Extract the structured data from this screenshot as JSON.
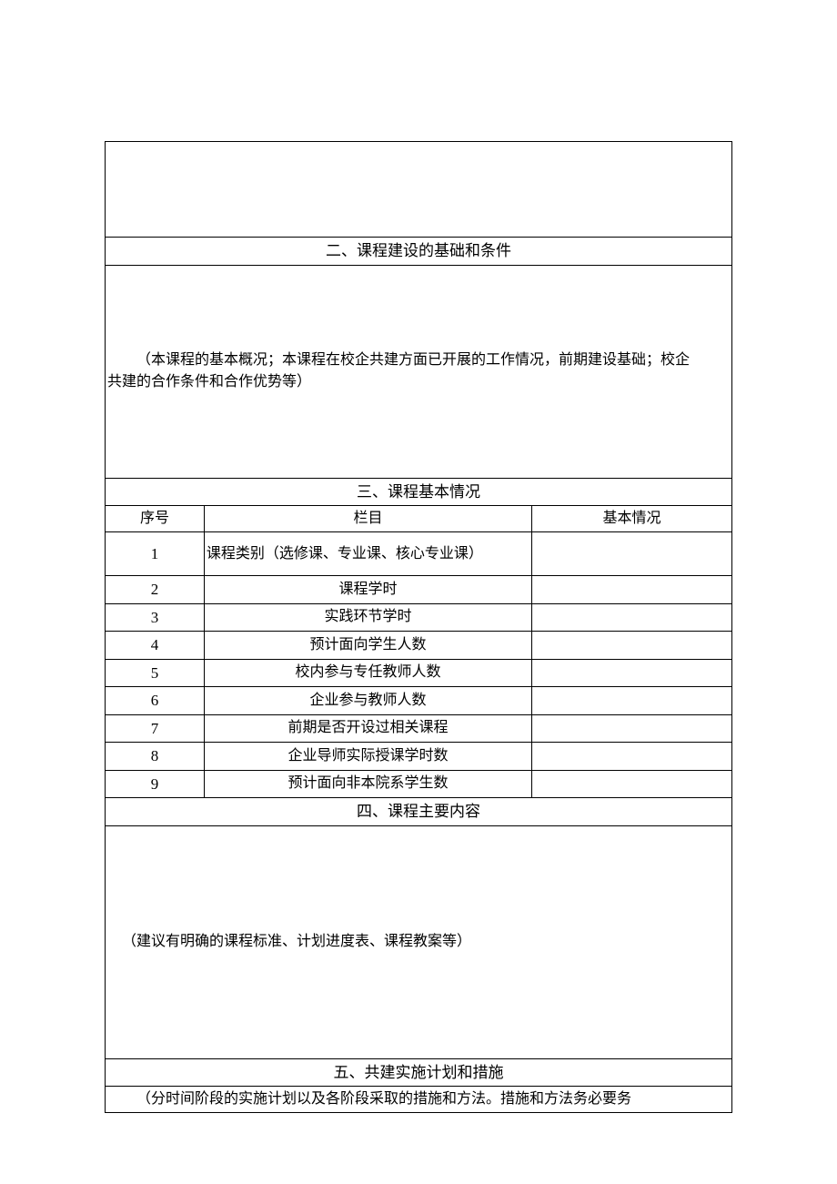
{
  "section2": {
    "title": "二、课程建设的基础和条件",
    "body_line1": "（本课程的基本概况；本课程在校企共建方面已开展的工作情况，前期建设基础；校企",
    "body_line2": "共建的合作条件和合作优势等）"
  },
  "section3": {
    "title": "三、课程基本情况",
    "header_seq": "序号",
    "header_item": "栏目",
    "header_info": "基本情况",
    "rows": [
      {
        "seq": "1",
        "item": "课程类别（选修课、专业课、核心专业课）",
        "info": ""
      },
      {
        "seq": "2",
        "item": "课程学时",
        "info": ""
      },
      {
        "seq": "3",
        "item": "实践环节学时",
        "info": ""
      },
      {
        "seq": "4",
        "item": "预计面向学生人数",
        "info": ""
      },
      {
        "seq": "5",
        "item": "校内参与专任教师人数",
        "info": ""
      },
      {
        "seq": "6",
        "item": "企业参与教师人数",
        "info": ""
      },
      {
        "seq": "7",
        "item": "前期是否开设过相关课程",
        "info": ""
      },
      {
        "seq": "8",
        "item": "企业导师实际授课学时数",
        "info": ""
      },
      {
        "seq": "9",
        "item": "预计面向非本院系学生数",
        "info": ""
      }
    ]
  },
  "section4": {
    "title": "四、课程主要内容",
    "body": "（建议有明确的课程标准、计划进度表、课程教案等）"
  },
  "section5": {
    "title": "五、共建实施计划和措施",
    "body": "（分时间阶段的实施计划以及各阶段采取的措施和方法。措施和方法务必要务"
  },
  "style": {
    "font_family": "SimSun",
    "font_size_pt": 12,
    "border_color": "#000000",
    "background_color": "#ffffff",
    "text_color": "#000000"
  }
}
